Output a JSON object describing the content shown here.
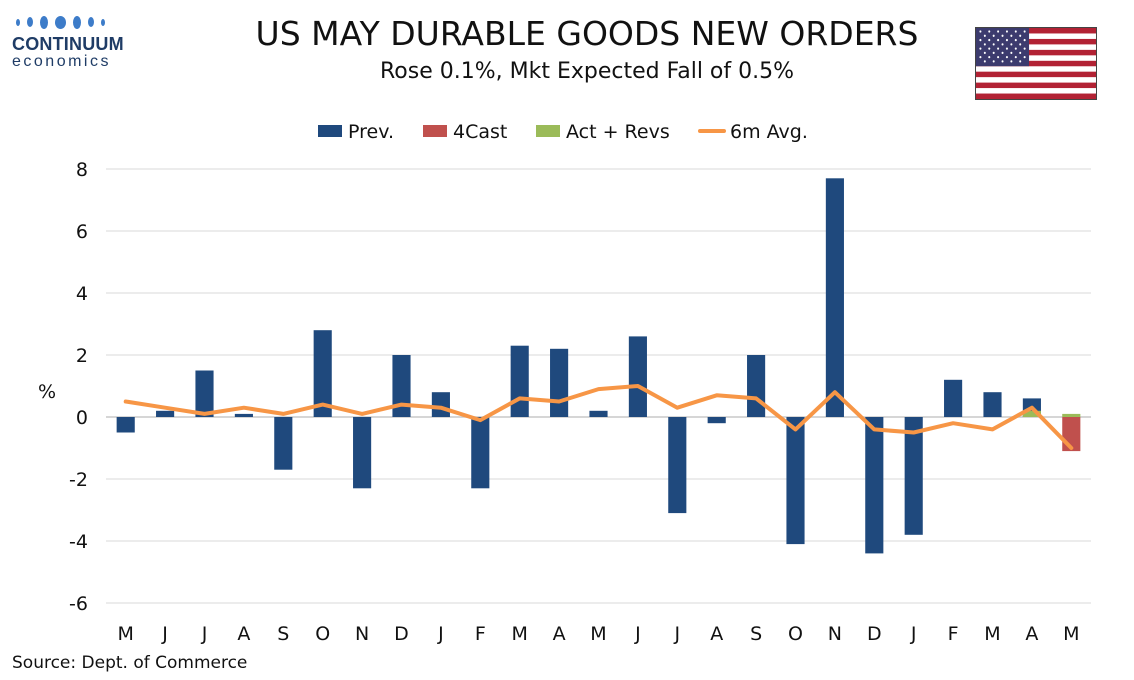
{
  "header": {
    "logo_name": "CONTINUUM",
    "logo_sub": "economics",
    "title": "US MAY DURABLE GOODS NEW ORDERS",
    "subtitle": "Rose 0.1%, Mkt Expected Fall of 0.5%"
  },
  "footer": {
    "source": "Source: Dept. of Commerce"
  },
  "colors": {
    "prev": "#1f497d",
    "forecast": "#c0504d",
    "actual": "#9bbb59",
    "avg_line": "#f79646",
    "grid": "#d9d9d9",
    "logo": "#1f3c66"
  },
  "chart_data": {
    "type": "bar",
    "title": "US MAY DURABLE GOODS NEW ORDERS",
    "subtitle": "Rose 0.1%, Mkt Expected Fall of 0.5%",
    "ylabel": "%",
    "xlabel": "",
    "ylim": [
      -6,
      8
    ],
    "yticks": [
      -6,
      -4,
      -2,
      0,
      2,
      4,
      6,
      8
    ],
    "grid": true,
    "legend_position": "top-center",
    "categories": [
      "M",
      "J",
      "J",
      "A",
      "S",
      "O",
      "N",
      "D",
      "J",
      "F",
      "M",
      "A",
      "M",
      "J",
      "J",
      "A",
      "S",
      "O",
      "N",
      "D",
      "J",
      "F",
      "M",
      "A",
      "M"
    ],
    "series": [
      {
        "name": "Prev.",
        "kind": "bar",
        "color": "#1f497d",
        "values": [
          -0.5,
          0.2,
          1.5,
          0.1,
          -1.7,
          2.8,
          -2.3,
          2.0,
          0.8,
          -2.3,
          2.3,
          2.2,
          0.2,
          2.6,
          -3.1,
          -0.2,
          2.0,
          -4.1,
          7.7,
          -4.4,
          -3.8,
          1.2,
          0.8,
          0.6,
          null
        ]
      },
      {
        "name": "4Cast",
        "kind": "bar",
        "color": "#c0504d",
        "values": [
          null,
          null,
          null,
          null,
          null,
          null,
          null,
          null,
          null,
          null,
          null,
          null,
          null,
          null,
          null,
          null,
          null,
          null,
          null,
          null,
          null,
          null,
          null,
          null,
          -1.1
        ]
      },
      {
        "name": "Act + Revs",
        "kind": "bar",
        "color": "#9bbb59",
        "values": [
          null,
          null,
          null,
          null,
          null,
          null,
          null,
          null,
          null,
          null,
          null,
          null,
          null,
          null,
          null,
          null,
          null,
          null,
          null,
          null,
          null,
          null,
          null,
          0.2,
          0.1
        ]
      },
      {
        "name": "6m Avg.",
        "kind": "line",
        "color": "#f79646",
        "values": [
          0.5,
          0.3,
          0.1,
          0.3,
          0.1,
          0.4,
          0.1,
          0.4,
          0.3,
          -0.1,
          0.6,
          0.5,
          0.9,
          1.0,
          0.3,
          0.7,
          0.6,
          -0.4,
          0.8,
          -0.4,
          -0.5,
          -0.2,
          -0.4,
          0.3,
          -1.0
        ]
      }
    ]
  }
}
